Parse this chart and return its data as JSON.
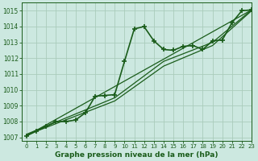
{
  "title": "Graphe pression niveau de la mer (hPa)",
  "bg_color": "#cce8e0",
  "grid_color": "#aaccbb",
  "line_color": "#1a5c1a",
  "xlim": [
    -0.5,
    23
  ],
  "ylim": [
    1006.8,
    1015.5
  ],
  "yticks": [
    1007,
    1008,
    1009,
    1010,
    1011,
    1012,
    1013,
    1014,
    1015
  ],
  "xticks": [
    0,
    1,
    2,
    3,
    4,
    5,
    6,
    7,
    8,
    9,
    10,
    11,
    12,
    13,
    14,
    15,
    16,
    17,
    18,
    19,
    20,
    21,
    22,
    23
  ],
  "series": [
    {
      "x": [
        0,
        1,
        2,
        3,
        4,
        5,
        6,
        7,
        8,
        9,
        10,
        11,
        12,
        13,
        14,
        15,
        16,
        17,
        18,
        19,
        20,
        21,
        22,
        23
      ],
      "y": [
        1007.1,
        1007.4,
        1007.7,
        1008.0,
        1008.0,
        1008.1,
        1008.55,
        1009.6,
        1009.65,
        1009.7,
        1011.8,
        1013.85,
        1014.0,
        1013.1,
        1012.55,
        1012.5,
        1012.75,
        1012.8,
        1012.55,
        1013.1,
        1013.15,
        1014.25,
        1015.0,
        1015.05
      ],
      "marker": "+",
      "markersize": 4,
      "linewidth": 1.2,
      "markeredgewidth": 1.2
    },
    {
      "x": [
        0,
        23
      ],
      "y": [
        1007.1,
        1015.05
      ],
      "marker": null,
      "markersize": 0,
      "linewidth": 0.9
    },
    {
      "x": [
        0,
        9,
        14,
        19,
        23
      ],
      "y": [
        1007.15,
        1009.3,
        1011.5,
        1012.8,
        1015.0
      ],
      "marker": null,
      "markersize": 0,
      "linewidth": 0.9
    },
    {
      "x": [
        0,
        9,
        14,
        19,
        23
      ],
      "y": [
        1007.2,
        1009.5,
        1011.8,
        1013.0,
        1015.05
      ],
      "marker": null,
      "markersize": 0,
      "linewidth": 0.9
    }
  ]
}
